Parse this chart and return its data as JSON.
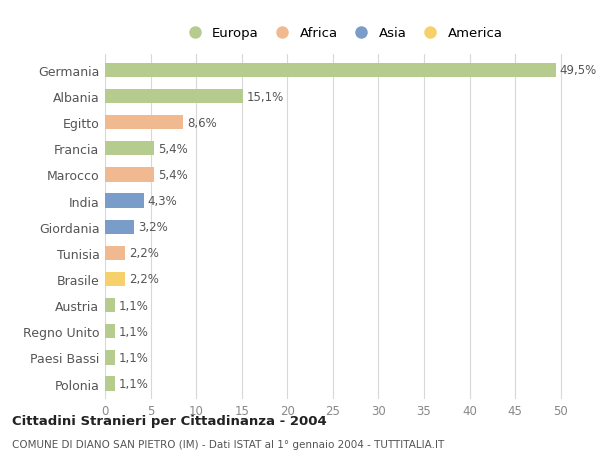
{
  "countries": [
    "Germania",
    "Albania",
    "Egitto",
    "Francia",
    "Marocco",
    "India",
    "Giordania",
    "Tunisia",
    "Brasile",
    "Austria",
    "Regno Unito",
    "Paesi Bassi",
    "Polonia"
  ],
  "values": [
    49.5,
    15.1,
    8.6,
    5.4,
    5.4,
    4.3,
    3.2,
    2.2,
    2.2,
    1.1,
    1.1,
    1.1,
    1.1
  ],
  "labels": [
    "49,5%",
    "15,1%",
    "8,6%",
    "5,4%",
    "5,4%",
    "4,3%",
    "3,2%",
    "2,2%",
    "2,2%",
    "1,1%",
    "1,1%",
    "1,1%",
    "1,1%"
  ],
  "colors": [
    "#b5cc8e",
    "#b5cc8e",
    "#f0b990",
    "#b5cc8e",
    "#f0b990",
    "#7a9cc9",
    "#7a9cc9",
    "#f0b990",
    "#f5d06b",
    "#b5cc8e",
    "#b5cc8e",
    "#b5cc8e",
    "#b5cc8e"
  ],
  "legend_labels": [
    "Europa",
    "Africa",
    "Asia",
    "America"
  ],
  "legend_colors": [
    "#b5cc8e",
    "#f0b990",
    "#7a9cc9",
    "#f5d06b"
  ],
  "title1": "Cittadini Stranieri per Cittadinanza - 2004",
  "title2": "COMUNE DI DIANO SAN PIETRO (IM) - Dati ISTAT al 1° gennaio 2004 - TUTTITALIA.IT",
  "xlim": [
    0,
    52
  ],
  "xticks": [
    0,
    5,
    10,
    15,
    20,
    25,
    30,
    35,
    40,
    45,
    50
  ],
  "background_color": "#ffffff",
  "grid_color": "#d8d8d8",
  "bar_height": 0.55,
  "label_fontsize": 8.5,
  "ytick_fontsize": 9,
  "xtick_fontsize": 8.5,
  "legend_fontsize": 9.5,
  "title1_fontsize": 9.5,
  "title2_fontsize": 7.5
}
